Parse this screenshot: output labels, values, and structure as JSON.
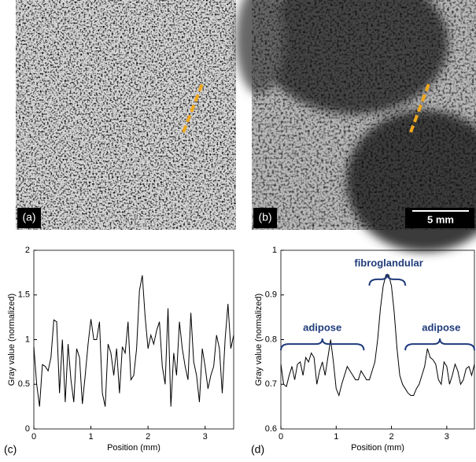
{
  "images": [
    {
      "label": "(a)"
    },
    {
      "label": "(b)",
      "scale_bar": "5 mm"
    }
  ],
  "chart_data": [
    {
      "type": "line",
      "panel_label": "(c)",
      "xlabel": "Position (mm)",
      "ylabel": "Gray value (normalized)",
      "x": [
        0,
        0.05,
        0.1,
        0.15,
        0.2,
        0.25,
        0.3,
        0.35,
        0.4,
        0.45,
        0.5,
        0.55,
        0.6,
        0.65,
        0.7,
        0.75,
        0.8,
        0.85,
        0.9,
        0.95,
        1,
        1.05,
        1.1,
        1.15,
        1.2,
        1.25,
        1.3,
        1.35,
        1.4,
        1.45,
        1.5,
        1.55,
        1.6,
        1.65,
        1.7,
        1.75,
        1.8,
        1.85,
        1.9,
        1.95,
        2,
        2.05,
        2.1,
        2.15,
        2.2,
        2.25,
        2.3,
        2.35,
        2.4,
        2.45,
        2.5,
        2.55,
        2.6,
        2.65,
        2.7,
        2.75,
        2.8,
        2.85,
        2.9,
        2.95,
        3,
        3.05,
        3.1,
        3.15,
        3.2,
        3.25,
        3.3,
        3.35,
        3.4,
        3.45,
        3.5
      ],
      "series": [
        {
          "color": "#000000",
          "values": [
            0.92,
            0.5,
            0.25,
            0.72,
            0.7,
            0.65,
            0.8,
            1.22,
            1.2,
            0.4,
            1.0,
            0.3,
            0.95,
            0.55,
            0.3,
            0.9,
            0.8,
            0.28,
            0.6,
            0.95,
            1.23,
            1.0,
            1.0,
            1.2,
            0.4,
            0.25,
            0.95,
            0.85,
            0.6,
            0.9,
            0.4,
            0.92,
            0.85,
            1.2,
            0.55,
            0.6,
            0.9,
            1.55,
            1.72,
            1.25,
            0.9,
            1.05,
            0.95,
            1.1,
            1.2,
            0.7,
            0.5,
            1.35,
            0.25,
            0.85,
            0.6,
            1.2,
            0.9,
            0.7,
            0.55,
            1.3,
            0.75,
            0.6,
            0.3,
            0.9,
            0.7,
            0.45,
            0.6,
            0.7,
            1.05,
            0.9,
            0.4,
            1.0,
            1.4,
            0.9,
            1.05
          ]
        }
      ],
      "xlim": [
        0,
        3.5
      ],
      "ylim": [
        0,
        2
      ],
      "xticks": [
        0,
        1,
        2,
        3
      ],
      "yticks": [
        0,
        0.5,
        1,
        1.5,
        2
      ]
    },
    {
      "type": "line",
      "panel_label": "(d)",
      "xlabel": "Position (mm)",
      "ylabel": "Gray value (normalized)",
      "x": [
        0,
        0.05,
        0.1,
        0.15,
        0.2,
        0.25,
        0.3,
        0.35,
        0.4,
        0.45,
        0.5,
        0.55,
        0.6,
        0.65,
        0.7,
        0.75,
        0.8,
        0.85,
        0.9,
        0.95,
        1,
        1.05,
        1.1,
        1.15,
        1.2,
        1.25,
        1.3,
        1.35,
        1.4,
        1.45,
        1.5,
        1.55,
        1.6,
        1.65,
        1.7,
        1.75,
        1.8,
        1.85,
        1.9,
        1.95,
        2,
        2.05,
        2.1,
        2.15,
        2.2,
        2.25,
        2.3,
        2.35,
        2.4,
        2.45,
        2.5,
        2.55,
        2.6,
        2.65,
        2.7,
        2.75,
        2.8,
        2.85,
        2.9,
        2.95,
        3,
        3.05,
        3.1,
        3.15,
        3.2,
        3.25,
        3.3,
        3.35,
        3.4,
        3.45,
        3.5
      ],
      "series": [
        {
          "color": "#000000",
          "values": [
            0.745,
            0.7,
            0.695,
            0.72,
            0.74,
            0.71,
            0.745,
            0.75,
            0.72,
            0.76,
            0.75,
            0.77,
            0.76,
            0.7,
            0.73,
            0.75,
            0.72,
            0.76,
            0.8,
            0.75,
            0.69,
            0.675,
            0.7,
            0.72,
            0.74,
            0.73,
            0.72,
            0.71,
            0.71,
            0.73,
            0.72,
            0.71,
            0.71,
            0.73,
            0.75,
            0.8,
            0.87,
            0.92,
            0.945,
            0.945,
            0.92,
            0.86,
            0.78,
            0.72,
            0.7,
            0.69,
            0.68,
            0.675,
            0.675,
            0.69,
            0.7,
            0.72,
            0.74,
            0.78,
            0.76,
            0.755,
            0.745,
            0.71,
            0.7,
            0.75,
            0.74,
            0.7,
            0.72,
            0.745,
            0.73,
            0.7,
            0.71,
            0.735,
            0.74,
            0.72,
            0.745
          ]
        }
      ],
      "xlim": [
        0,
        3.5
      ],
      "ylim": [
        0.6,
        1
      ],
      "xticks": [
        0,
        1,
        2,
        3
      ],
      "yticks": [
        0.6,
        0.7,
        0.8,
        0.9,
        1
      ],
      "annotations": [
        "adipose",
        "fibroglandular",
        "adipose"
      ]
    }
  ]
}
